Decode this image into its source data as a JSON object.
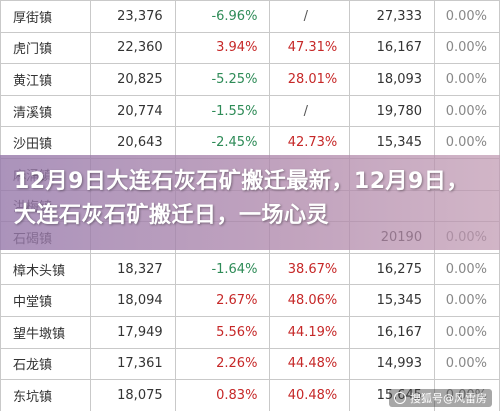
{
  "rows": [
    {
      "town": "厚街镇",
      "population": "23,376",
      "change": "-6.96%",
      "change_dir": "neg",
      "ratio": "/",
      "count": "27,333",
      "pct": "0.00%"
    },
    {
      "town": "虎门镇",
      "population": "22,360",
      "change": "3.94%",
      "change_dir": "pos",
      "ratio": "47.31%",
      "count": "16,167",
      "pct": "0.00%"
    },
    {
      "town": "黄江镇",
      "population": "20,825",
      "change": "-5.25%",
      "change_dir": "neg",
      "ratio": "28.01%",
      "count": "18,093",
      "pct": "0.00%"
    },
    {
      "town": "清溪镇",
      "population": "20,774",
      "change": "-1.55%",
      "change_dir": "neg",
      "ratio": "/",
      "count": "19,780",
      "pct": "0.00%"
    },
    {
      "town": "沙田镇",
      "population": "20,643",
      "change": "-2.45%",
      "change_dir": "neg",
      "ratio": "42.73%",
      "count": "15,345",
      "pct": "0.00%"
    },
    {
      "town": "麻涌镇",
      "population": "",
      "change": "",
      "change_dir": "neg",
      "ratio": "",
      "count": "",
      "pct": ""
    },
    {
      "town": "洪梅镇",
      "population": "",
      "change": "",
      "change_dir": "neg",
      "ratio": "",
      "count": "",
      "pct": ""
    },
    {
      "town": "石碣镇",
      "population": "",
      "change": "",
      "change_dir": "neg",
      "ratio": "",
      "count": "20190",
      "pct": "0.00%"
    },
    {
      "town": "樟木头镇",
      "population": "18,327",
      "change": "-1.64%",
      "change_dir": "neg",
      "ratio": "38.67%",
      "count": "16,275",
      "pct": "0.00%"
    },
    {
      "town": "中堂镇",
      "population": "18,094",
      "change": "2.67%",
      "change_dir": "pos",
      "ratio": "48.06%",
      "count": "15,345",
      "pct": "0.00%"
    },
    {
      "town": "望牛墩镇",
      "population": "17,949",
      "change": "5.56%",
      "change_dir": "pos",
      "ratio": "44.19%",
      "count": "16,167",
      "pct": "0.00%"
    },
    {
      "town": "石龙镇",
      "population": "17,361",
      "change": "2.26%",
      "change_dir": "pos",
      "ratio": "44.48%",
      "count": "14,993",
      "pct": "0.00%"
    },
    {
      "town": "东坑镇",
      "population": "18,075",
      "change": "0.83%",
      "change_dir": "pos",
      "ratio": "40.48%",
      "count": "15,645",
      "pct": "0.00%"
    }
  ],
  "overlay": {
    "title": "12月9日大连石灰石矿搬迁最新，12月9日，大连石灰石矿搬迁日，一场心灵"
  },
  "watermark": {
    "text": "搜狐号@风雷房"
  }
}
